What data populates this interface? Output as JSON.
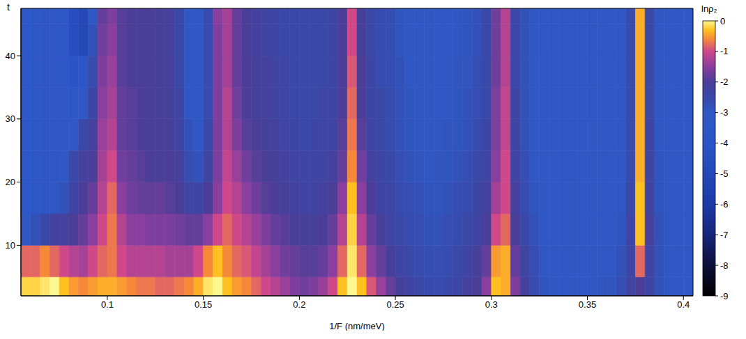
{
  "chart_data": {
    "type": "heatmap",
    "x_label": "1/F (nm/meV)",
    "y_label": "t",
    "xlim": [
      0.055,
      0.405
    ],
    "xticks": [
      0.1,
      0.15,
      0.2,
      0.25,
      0.3,
      0.35,
      0.4
    ],
    "ylim": [
      2,
      47.5
    ],
    "yticks": [
      10,
      20,
      30,
      40
    ],
    "heatmap": {
      "x_edges": [
        0.055,
        0.06,
        0.065,
        0.07,
        0.075,
        0.08,
        0.085,
        0.09,
        0.095,
        0.1,
        0.105,
        0.11,
        0.115,
        0.12,
        0.125,
        0.13,
        0.135,
        0.14,
        0.145,
        0.15,
        0.155,
        0.16,
        0.165,
        0.17,
        0.175,
        0.18,
        0.185,
        0.19,
        0.195,
        0.2,
        0.205,
        0.21,
        0.215,
        0.22,
        0.225,
        0.23,
        0.235,
        0.24,
        0.245,
        0.25,
        0.255,
        0.26,
        0.265,
        0.27,
        0.275,
        0.28,
        0.285,
        0.29,
        0.295,
        0.3,
        0.305,
        0.31,
        0.315,
        0.32,
        0.325,
        0.33,
        0.335,
        0.34,
        0.345,
        0.35,
        0.355,
        0.36,
        0.365,
        0.37,
        0.375,
        0.38,
        0.385,
        0.39,
        0.395,
        0.4,
        0.405
      ],
      "y_edges": [
        2,
        5,
        10,
        15,
        20,
        25,
        30,
        35,
        40,
        45,
        47.5
      ],
      "z": [
        [
          -0.2,
          -0.8,
          -3,
          -3.5,
          -3.5,
          -3.5,
          -3.5,
          -3.5,
          -3.5,
          -3.5
        ],
        [
          -0.2,
          -0.8,
          -2.8,
          -3.5,
          -3.5,
          -3.5,
          -3.5,
          -3.5,
          -3.5,
          -3.5
        ],
        [
          -0.1,
          -0.6,
          -2.5,
          -3.2,
          -3.3,
          -3.3,
          -3.3,
          -3.3,
          -3.3,
          -3.3
        ],
        [
          0,
          -0.8,
          -2.2,
          -3,
          -3.2,
          -3.2,
          -3.2,
          -3.2,
          -3.2,
          -3.2
        ],
        [
          -0.3,
          -1,
          -2.2,
          -2.8,
          -3,
          -3.2,
          -3.2,
          -3.5,
          -3.5,
          -3.5
        ],
        [
          -0.5,
          -1.2,
          -2,
          -2.3,
          -2.5,
          -3,
          -3.5,
          -4,
          -4.5,
          -4.5
        ],
        [
          -0.6,
          -1.3,
          -1.8,
          -2,
          -2.2,
          -2.5,
          -3,
          -3.5,
          -5,
          -5
        ],
        [
          -0.5,
          -1,
          -1.5,
          -1.8,
          -2,
          -2.2,
          -2.4,
          -2.6,
          -2.8,
          -3
        ],
        [
          -0.4,
          -0.8,
          -1,
          -1.2,
          -1.3,
          -1.4,
          -1.5,
          -1.6,
          -1.7,
          -1.8
        ],
        [
          -0.4,
          -0.7,
          -0.7,
          -0.8,
          -1,
          -1.2,
          -1.3,
          -1.4,
          -1.5,
          -1.6
        ],
        [
          -0.5,
          -1,
          -1.2,
          -1.5,
          -1.7,
          -1.8,
          -1.8,
          -1.9,
          -1.9,
          -1.9
        ],
        [
          -0.6,
          -1.2,
          -1.5,
          -1.7,
          -1.8,
          -1.9,
          -1.9,
          -2,
          -2,
          -2
        ],
        [
          -0.7,
          -1.2,
          -1.5,
          -1.8,
          -1.9,
          -2,
          -2,
          -2,
          -2,
          -2
        ],
        [
          -0.7,
          -1.2,
          -1.6,
          -1.8,
          -2,
          -2,
          -2,
          -2,
          -2,
          -2
        ],
        [
          -0.8,
          -1.2,
          -1.6,
          -1.8,
          -2,
          -2,
          -2.1,
          -2.1,
          -2.1,
          -2.1
        ],
        [
          -0.8,
          -1.3,
          -1.6,
          -1.9,
          -2,
          -2.1,
          -2.1,
          -2.2,
          -2.2,
          -2.2
        ],
        [
          -0.7,
          -1.3,
          -1.7,
          -2,
          -2.2,
          -2.3,
          -2.4,
          -2.5,
          -2.5,
          -2.5
        ],
        [
          -0.6,
          -1.3,
          -1.8,
          -2.3,
          -2.6,
          -2.8,
          -3,
          -3,
          -3,
          -3
        ],
        [
          -0.4,
          -1,
          -1.8,
          -2.4,
          -2.8,
          -3,
          -3,
          -3,
          -3,
          -3
        ],
        [
          -0.1,
          -0.6,
          -1.5,
          -2,
          -2.3,
          -2.5,
          -2.6,
          -2.6,
          -2.6,
          -2.6
        ],
        [
          0,
          -0.3,
          -1,
          -1.5,
          -1.6,
          -1.6,
          -1.6,
          -1.6,
          -1.6,
          -1.5
        ],
        [
          -0.3,
          -0.6,
          -0.8,
          -1,
          -1.1,
          -1.2,
          -1.2,
          -1.3,
          -1.3,
          -1.3
        ],
        [
          -0.5,
          -0.8,
          -1,
          -1.2,
          -1.4,
          -1.6,
          -1.7,
          -1.8,
          -1.8,
          -1.8
        ],
        [
          -0.6,
          -0.9,
          -1.2,
          -1.5,
          -1.7,
          -1.9,
          -2,
          -2,
          -2,
          -2
        ],
        [
          -0.8,
          -1.1,
          -1.4,
          -1.7,
          -1.9,
          -2,
          -2.1,
          -2.1,
          -2.2,
          -2.2
        ],
        [
          -1,
          -1.3,
          -1.6,
          -1.9,
          -2,
          -2.1,
          -2.2,
          -2.2,
          -2.3,
          -2.3
        ],
        [
          -1.2,
          -1.5,
          -1.8,
          -2,
          -2.1,
          -2.2,
          -2.3,
          -2.3,
          -2.4,
          -2.4
        ],
        [
          -1.4,
          -1.7,
          -1.9,
          -2.1,
          -2.2,
          -2.3,
          -2.4,
          -2.4,
          -2.5,
          -2.5
        ],
        [
          -1.6,
          -1.8,
          -2,
          -2.2,
          -2.3,
          -2.4,
          -2.5,
          -2.5,
          -2.5,
          -2.5
        ],
        [
          -1.7,
          -1.9,
          -2.1,
          -2.3,
          -2.4,
          -2.5,
          -2.5,
          -2.5,
          -2.5,
          -2.5
        ],
        [
          -1.6,
          -1.9,
          -2.1,
          -2.3,
          -2.4,
          -2.4,
          -2.5,
          -2.5,
          -2.5,
          -2.5
        ],
        [
          -1.4,
          -1.8,
          -2,
          -2.2,
          -2.3,
          -2.4,
          -2.4,
          -2.5,
          -2.5,
          -2.5
        ],
        [
          -1,
          -1.5,
          -1.8,
          -2,
          -2.2,
          -2.3,
          -2.3,
          -2.4,
          -2.4,
          -2.4
        ],
        [
          -0.3,
          -0.8,
          -1.2,
          -1.5,
          -1.8,
          -1.9,
          -2,
          -2,
          -2,
          -2
        ],
        [
          0,
          -0.1,
          -0.2,
          -0.3,
          -0.6,
          -0.7,
          -0.8,
          -0.9,
          -1,
          -1
        ],
        [
          -0.3,
          -0.8,
          -1.2,
          -1.5,
          -1.7,
          -1.9,
          -2,
          -2,
          -2.1,
          -2.1
        ],
        [
          -0.9,
          -1.5,
          -1.8,
          -2,
          -2.2,
          -2.3,
          -2.4,
          -2.4,
          -2.5,
          -2.5
        ],
        [
          -1.4,
          -1.8,
          -2.1,
          -2.3,
          -2.4,
          -2.5,
          -2.5,
          -2.6,
          -2.6,
          -2.6
        ],
        [
          -1.8,
          -2.1,
          -2.3,
          -2.4,
          -2.5,
          -2.6,
          -2.6,
          -2.7,
          -2.7,
          -2.7
        ],
        [
          -2.1,
          -2.3,
          -2.5,
          -2.6,
          -2.7,
          -2.8,
          -2.8,
          -2.8,
          -2.9,
          -2.9
        ],
        [
          -2.3,
          -2.5,
          -2.6,
          -2.7,
          -2.8,
          -2.9,
          -2.9,
          -3,
          -3,
          -3
        ],
        [
          -2.5,
          -2.6,
          -2.7,
          -2.8,
          -2.9,
          -3,
          -3,
          -3,
          -3,
          -3
        ],
        [
          -2.6,
          -2.7,
          -2.8,
          -2.9,
          -3,
          -3,
          -3,
          -3,
          -3,
          -3
        ],
        [
          -2.6,
          -2.7,
          -2.8,
          -2.9,
          -2.9,
          -3,
          -3,
          -3,
          -3,
          -3
        ],
        [
          -2.5,
          -2.6,
          -2.7,
          -2.8,
          -2.9,
          -2.9,
          -3,
          -3,
          -3,
          -3
        ],
        [
          -2.4,
          -2.5,
          -2.6,
          -2.7,
          -2.8,
          -2.9,
          -2.9,
          -2.9,
          -3,
          -3
        ],
        [
          -2.2,
          -2.3,
          -2.5,
          -2.6,
          -2.7,
          -2.8,
          -2.8,
          -2.9,
          -2.9,
          -2.9
        ],
        [
          -2,
          -2.1,
          -2.3,
          -2.4,
          -2.5,
          -2.6,
          -2.7,
          -2.7,
          -2.8,
          -2.8
        ],
        [
          -1.5,
          -1.8,
          -2,
          -2.2,
          -2.3,
          -2.4,
          -2.5,
          -2.5,
          -2.5,
          -2.5
        ],
        [
          -0.3,
          -0.5,
          -1,
          -1.3,
          -1.5,
          -1.6,
          -1.6,
          -1.7,
          -1.7,
          -1.7
        ],
        [
          -0.4,
          -0.4,
          -0.8,
          -1,
          -1,
          -1.1,
          -1.1,
          -1.2,
          -1.2,
          -1.2
        ],
        [
          -1.6,
          -1.8,
          -2,
          -2.2,
          -2.3,
          -2.4,
          -2.4,
          -2.5,
          -2.5,
          -2.5
        ],
        [
          -2.2,
          -2.3,
          -2.5,
          -2.6,
          -2.7,
          -2.8,
          -2.8,
          -2.8,
          -2.8,
          -2.8
        ],
        [
          -2.6,
          -2.7,
          -2.8,
          -2.9,
          -3,
          -3,
          -3,
          -3,
          -3,
          -3
        ],
        [
          -2.9,
          -3,
          -3,
          -3.1,
          -3.1,
          -3.1,
          -3.1,
          -3.1,
          -3.2,
          -3.2
        ],
        [
          -3,
          -3,
          -3.1,
          -3.1,
          -3.1,
          -3.2,
          -3.2,
          -3.2,
          -3.2,
          -3.2
        ],
        [
          -3,
          -3,
          -3.1,
          -3.1,
          -3.2,
          -3.2,
          -3.2,
          -3.2,
          -3.2,
          -3.2
        ],
        [
          -3,
          -3.1,
          -3.1,
          -3.1,
          -3.2,
          -3.2,
          -3.2,
          -3.2,
          -3.2,
          -3.2
        ],
        [
          -3,
          -3.1,
          -3.1,
          -3.1,
          -3.1,
          -3.2,
          -3.2,
          -3.2,
          -3.2,
          -3.2
        ],
        [
          -3,
          -3,
          -3.1,
          -3.1,
          -3.1,
          -3.1,
          -3.2,
          -3.2,
          -3.2,
          -3.2
        ],
        [
          -2.9,
          -3,
          -3,
          -3.1,
          -3.1,
          -3.1,
          -3.1,
          -3.1,
          -3.1,
          -3.1
        ],
        [
          -2.9,
          -3,
          -3,
          -3,
          -3,
          -3.1,
          -3.1,
          -3.1,
          -3.1,
          -3.1
        ],
        [
          -2.7,
          -2.8,
          -2.9,
          -3,
          -3,
          -3,
          -3,
          -3,
          -3,
          -3
        ],
        [
          -2.3,
          -2.4,
          -2.4,
          -2.5,
          -2.6,
          -2.6,
          -2.6,
          -2.6,
          -2.6,
          -2.6
        ],
        [
          -2,
          -0.8,
          -0.3,
          -0.3,
          -0.4,
          -0.4,
          -0.4,
          -0.4,
          -0.4,
          -0.4
        ],
        [
          -2.4,
          -2.3,
          -2.2,
          -2.3,
          -2.4,
          -2.4,
          -2.5,
          -2.5,
          -2.5,
          -2.5
        ],
        [
          -2.8,
          -2.8,
          -2.8,
          -2.9,
          -2.9,
          -3,
          -3,
          -3,
          -3,
          -3
        ],
        [
          -3,
          -3,
          -3,
          -3,
          -3.1,
          -3.1,
          -3.1,
          -3.1,
          -3.1,
          -3.1
        ],
        [
          -3,
          -3,
          -3.1,
          -3.1,
          -3.1,
          -3.1,
          -3.1,
          -3.1,
          -3.1,
          -3.1
        ],
        [
          -3,
          -3.1,
          -3.1,
          -3.1,
          -3.1,
          -3.1,
          -3.1,
          -3.1,
          -3.1,
          -3.1
        ]
      ]
    },
    "colorbar": {
      "label": "lnρ₂",
      "lim": [
        -9,
        0
      ],
      "ticks": [
        0,
        -1,
        -2,
        -3,
        -4,
        -5,
        -6,
        -7,
        -8,
        -9
      ]
    }
  }
}
